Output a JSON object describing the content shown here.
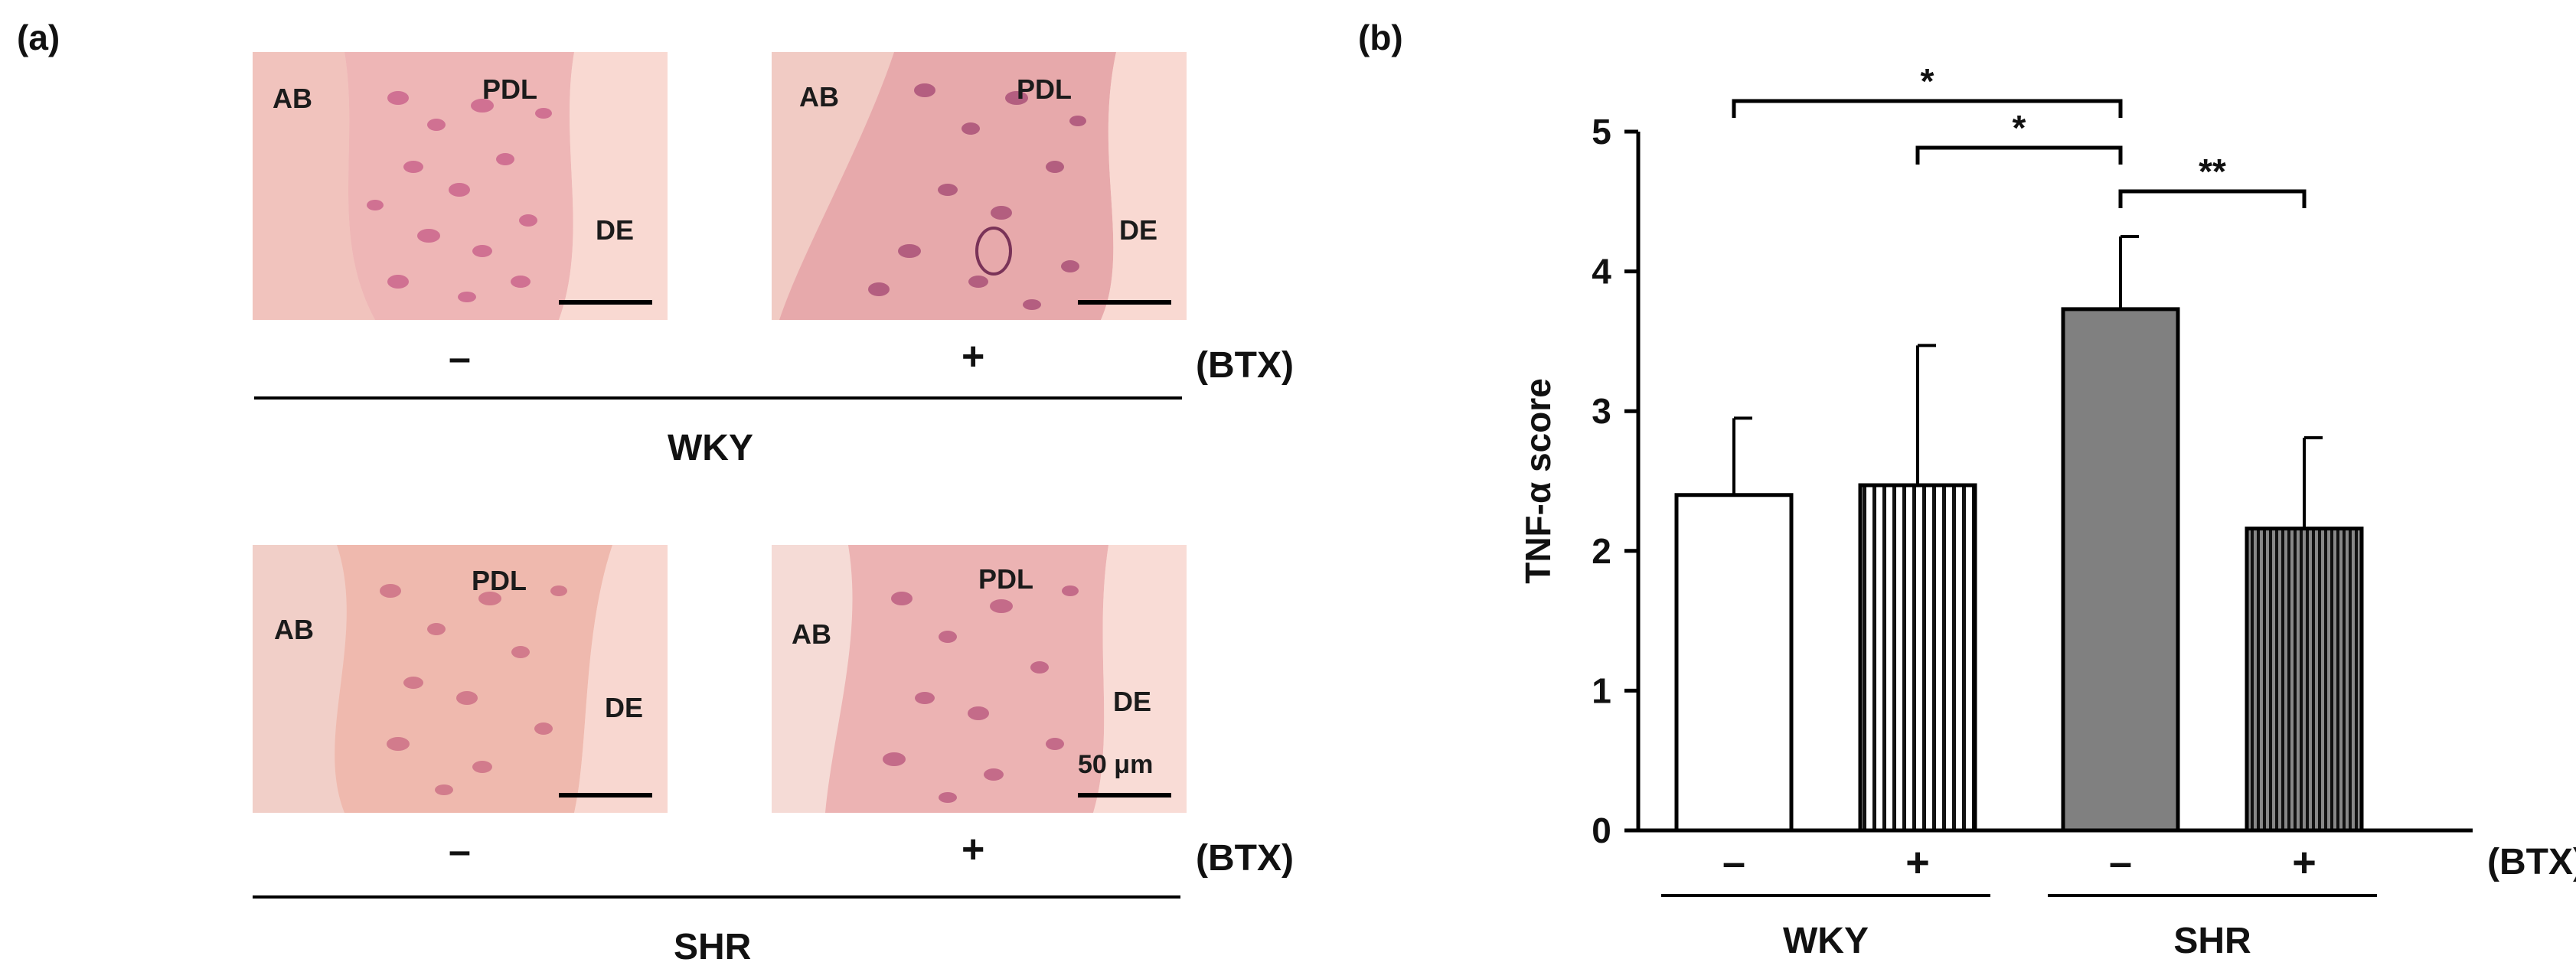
{
  "panel_a": {
    "label": "(a)",
    "rows": [
      {
        "group": "WKY",
        "treatment_label": "(BTX)",
        "images": [
          {
            "sign": "–",
            "tissue_labels": [
              "AB",
              "PDL",
              "DE"
            ]
          },
          {
            "sign": "+",
            "tissue_labels": [
              "AB",
              "PDL",
              "DE"
            ]
          }
        ]
      },
      {
        "group": "SHR",
        "treatment_label": "(BTX)",
        "images": [
          {
            "sign": "–",
            "tissue_labels": [
              "AB",
              "PDL",
              "DE"
            ]
          },
          {
            "sign": "+",
            "tissue_labels": [
              "AB",
              "PDL",
              "DE"
            ],
            "scale_label": "50 μm"
          }
        ]
      }
    ],
    "colors": {
      "tissue_bg": "#f6cfc8",
      "nuclei": "#c85a86"
    }
  },
  "chart_data": {
    "label": "(b)",
    "type": "bar",
    "ylabel": "TNF-α score",
    "ylim": [
      0,
      5
    ],
    "yticks": [
      0,
      1,
      2,
      3,
      4,
      5
    ],
    "categories": [
      "–",
      "+",
      "–",
      "+"
    ],
    "treatment_label": "(BTX)",
    "groups": [
      {
        "name": "WKY",
        "categories": [
          0,
          1
        ]
      },
      {
        "name": "SHR",
        "categories": [
          2,
          3
        ]
      }
    ],
    "values": [
      2.4,
      2.47,
      3.73,
      2.16
    ],
    "errors": [
      0.55,
      1.0,
      0.52,
      0.65
    ],
    "fills": [
      "white",
      "vertical-stripes",
      "#808080",
      "dense-stripes"
    ],
    "significance": [
      {
        "from": 0,
        "to": 2,
        "label": "*"
      },
      {
        "from": 1,
        "to": 2,
        "label": "*"
      },
      {
        "from": 2,
        "to": 3,
        "label": "**"
      }
    ]
  }
}
